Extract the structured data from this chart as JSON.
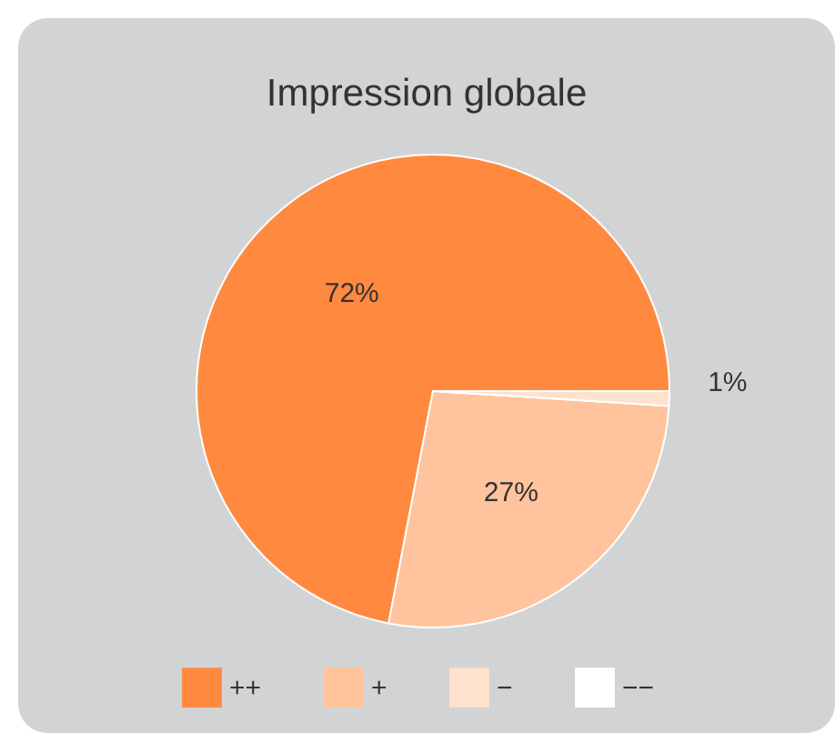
{
  "chart_data": {
    "type": "pie",
    "title": "Impression globale",
    "categories": [
      "++",
      "+",
      "−",
      "−−"
    ],
    "values": [
      72,
      27,
      1,
      0
    ],
    "colors": [
      "#ff8a3f",
      "#ffc39d",
      "#ffe2cd",
      "#ffffff"
    ],
    "value_labels": [
      "72%",
      "27%",
      "1%",
      null
    ],
    "legend": "bottom"
  }
}
